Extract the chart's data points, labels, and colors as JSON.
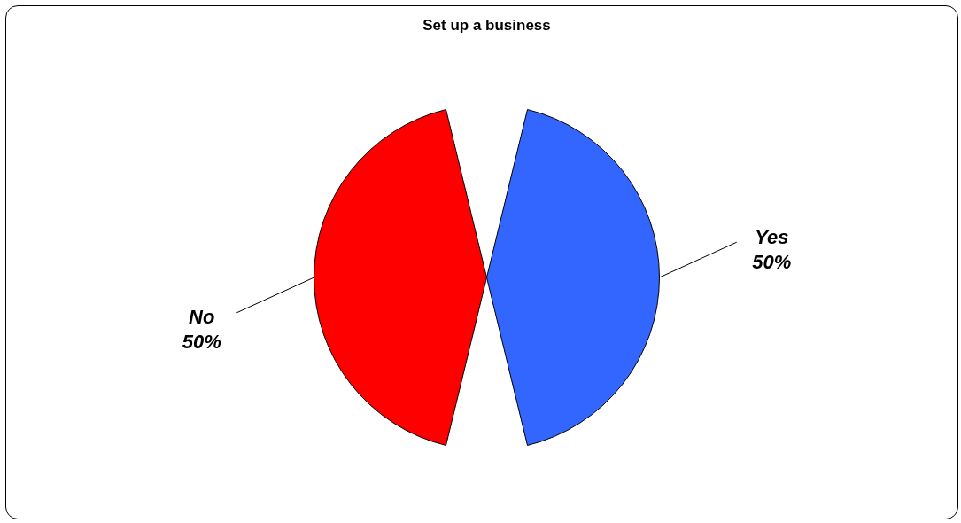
{
  "chart_data": {
    "type": "pie",
    "title": "Set up a  business",
    "categories": [
      "Yes",
      "No"
    ],
    "values": [
      50,
      50
    ],
    "colors": [
      "#3366ff",
      "#ff0000"
    ],
    "value_labels": [
      "50%",
      "50%"
    ]
  }
}
